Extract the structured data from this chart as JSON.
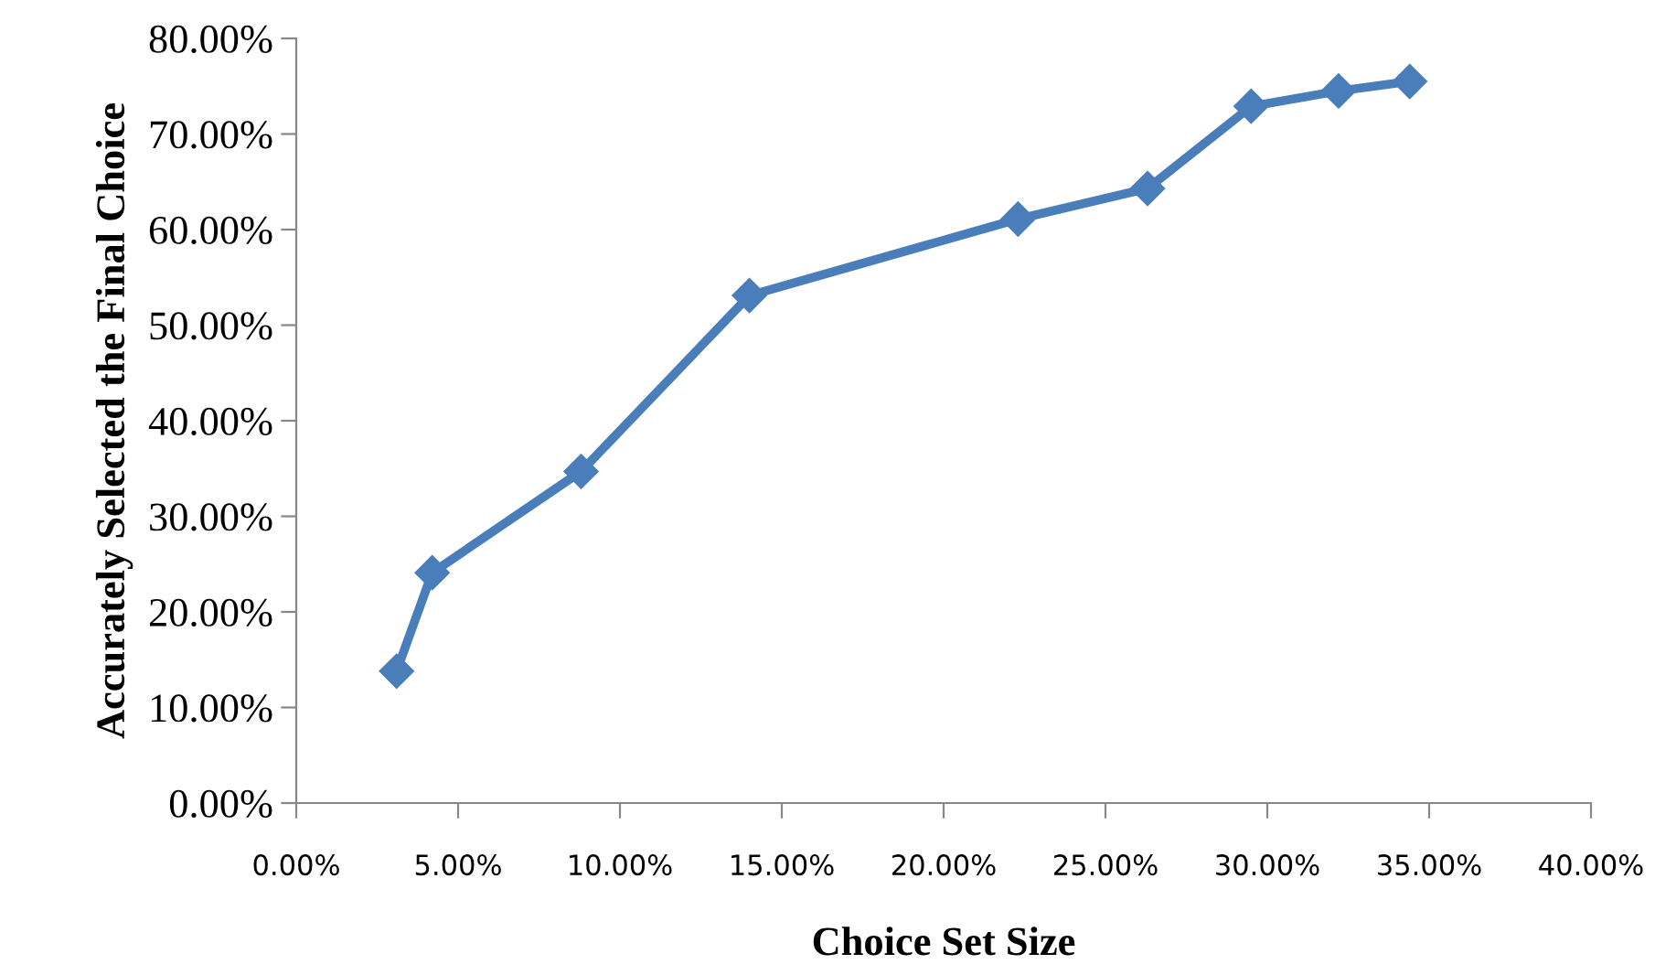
{
  "chart_data": {
    "type": "line",
    "xlabel": "Choice Set Size",
    "ylabel": "Accurately Selected the Final Choice",
    "x": [
      3.1,
      4.2,
      8.8,
      14.0,
      22.3,
      26.3,
      29.5,
      32.2,
      34.4
    ],
    "series": [
      {
        "color": "#4a7ebb",
        "values": [
          13.8,
          24.1,
          34.7,
          53.1,
          61.1,
          64.3,
          72.9,
          74.5,
          75.5
        ]
      }
    ],
    "xlim": [
      0,
      40
    ],
    "xticks": [
      {
        "value": 0,
        "label": "0.00%"
      },
      {
        "value": 5,
        "label": "5.00%"
      },
      {
        "value": 10,
        "label": "10.00%"
      },
      {
        "value": 15,
        "label": "15.00%"
      },
      {
        "value": 20,
        "label": "20.00%"
      },
      {
        "value": 25,
        "label": "25.00%"
      },
      {
        "value": 30,
        "label": "30.00%"
      },
      {
        "value": 35,
        "label": "35.00%"
      },
      {
        "value": 40,
        "label": "40.00%"
      }
    ],
    "ylim": [
      0,
      80
    ],
    "yticks": [
      {
        "value": 0,
        "label": "0.00%"
      },
      {
        "value": 10,
        "label": "10.00%"
      },
      {
        "value": 20,
        "label": "20.00%"
      },
      {
        "value": 30,
        "label": "30.00%"
      },
      {
        "value": 40,
        "label": "40.00%"
      },
      {
        "value": 50,
        "label": "50.00%"
      },
      {
        "value": 60,
        "label": "60.00%"
      },
      {
        "value": 70,
        "label": "70.00%"
      },
      {
        "value": 80,
        "label": "80.00%"
      }
    ],
    "marker": "diamond",
    "line_style": "solid",
    "grid": false,
    "legend": false
  }
}
